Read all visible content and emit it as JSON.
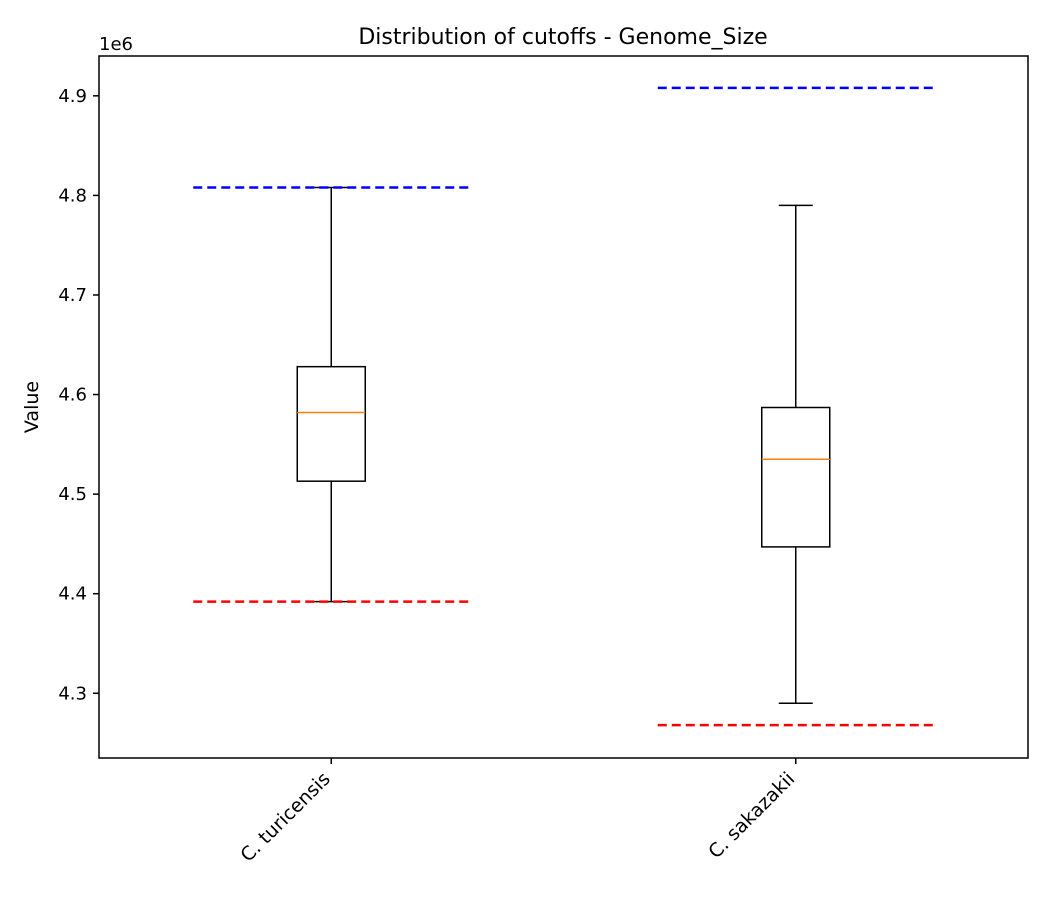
{
  "chart_data": {
    "type": "box",
    "title": "Distribution of cutoffs - Genome_Size",
    "xlabel": "",
    "ylabel": "Value",
    "y_offset_label": "1e6",
    "y_scale_factor": 1000000,
    "ylim": [
      4.235,
      4.94
    ],
    "y_ticks": [
      4.3,
      4.4,
      4.5,
      4.6,
      4.7,
      4.8,
      4.9
    ],
    "categories": [
      "C. turicensis",
      "C. sakazakii"
    ],
    "boxes": [
      {
        "category": "C. turicensis",
        "whisker_low": 4.392,
        "q1": 4.513,
        "median": 4.582,
        "q3": 4.628,
        "whisker_high": 4.808,
        "lower_cutoff": 4.392,
        "upper_cutoff": 4.808
      },
      {
        "category": "C. sakazakii",
        "whisker_low": 4.29,
        "q1": 4.447,
        "median": 4.535,
        "q3": 4.587,
        "whisker_high": 4.79,
        "lower_cutoff": 4.268,
        "upper_cutoff": 4.908
      }
    ],
    "colors": {
      "box": "#000000",
      "median": "#ff7f0e",
      "upper_cutoff": "#0000ff",
      "lower_cutoff": "#ff0000"
    },
    "grid": false,
    "legend": "none"
  }
}
